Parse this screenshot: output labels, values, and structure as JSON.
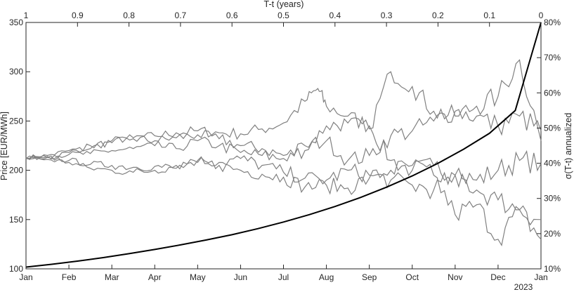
{
  "chart_data": {
    "type": "line",
    "xlabel_top": "T-t (years)",
    "ylabel_left": "Price [EUR/MWh]",
    "ylabel_right": "σ(T-t) annualized",
    "x_bottom": {
      "ticks": [
        "Jan",
        "Feb",
        "Mar",
        "Apr",
        "May",
        "Jun",
        "Jul",
        "Aug",
        "Sep",
        "Oct",
        "Nov",
        "Dec",
        "Jan"
      ],
      "secondary_label": "2023"
    },
    "x_top": {
      "ticks": [
        "1",
        "0.9",
        "0.8",
        "0.7",
        "0.6",
        "0.5",
        "0.4",
        "0.3",
        "0.2",
        "0.1",
        "0"
      ],
      "lim": [
        1,
        0
      ]
    },
    "y_left": {
      "lim": [
        100,
        350
      ],
      "ticks": [
        "100",
        "150",
        "200",
        "250",
        "300",
        "350"
      ]
    },
    "y_right": {
      "lim": [
        10,
        80
      ],
      "ticks": [
        "10%",
        "20%",
        "30%",
        "40%",
        "50%",
        "60%",
        "70%",
        "80%"
      ]
    },
    "volatility_curve": {
      "x_years_remaining": [
        1,
        0.95,
        0.9,
        0.85,
        0.8,
        0.75,
        0.7,
        0.65,
        0.6,
        0.55,
        0.5,
        0.45,
        0.4,
        0.35,
        0.3,
        0.25,
        0.2,
        0.15,
        0.1,
        0.05,
        0
      ],
      "sigma_percent": [
        10.5,
        11.3,
        12.2,
        13.2,
        14.3,
        15.5,
        16.8,
        18.2,
        19.7,
        21.4,
        23.3,
        25.4,
        27.7,
        30.3,
        33.2,
        36.4,
        40.0,
        44.0,
        48.5,
        55.0,
        80.0
      ]
    },
    "price_paths": [
      {
        "x_month": [
          0,
          0.5,
          1,
          1.5,
          2,
          2.5,
          3,
          3.5,
          4,
          4.5,
          5,
          5.5,
          6,
          6.5,
          6.8,
          7,
          7.5,
          8,
          8.5,
          9,
          9.5,
          10,
          10.5,
          11,
          11.5,
          12
        ],
        "price": [
          213,
          215,
          220,
          222,
          230,
          233,
          235,
          238,
          240,
          238,
          237,
          242,
          248,
          270,
          283,
          265,
          255,
          245,
          210,
          200,
          205,
          195,
          190,
          200,
          210,
          207
        ]
      },
      {
        "x_month": [
          0,
          0.5,
          1,
          1.5,
          2,
          2.5,
          3,
          3.5,
          4,
          4.5,
          5,
          5.5,
          6,
          6.5,
          7,
          7.5,
          8,
          8.5,
          9,
          9.5,
          10,
          10.5,
          11,
          11.5,
          12
        ],
        "price": [
          212,
          213,
          218,
          225,
          228,
          232,
          230,
          233,
          236,
          232,
          225,
          222,
          215,
          220,
          245,
          248,
          242,
          300,
          285,
          260,
          255,
          265,
          275,
          312,
          230
        ]
      },
      {
        "x_month": [
          0,
          0.5,
          1,
          1.5,
          2,
          2.5,
          3,
          3.5,
          4,
          4.5,
          5,
          5.5,
          6,
          6.5,
          7,
          7.5,
          8,
          8.5,
          9,
          9.5,
          10,
          10.5,
          11,
          11.5,
          12
        ],
        "price": [
          212,
          214,
          216,
          217,
          220,
          222,
          225,
          222,
          230,
          225,
          218,
          215,
          212,
          225,
          230,
          210,
          215,
          235,
          240,
          250,
          260,
          255,
          245,
          255,
          240
        ]
      },
      {
        "x_month": [
          0,
          0.5,
          1,
          1.5,
          2,
          2.5,
          3,
          3.5,
          4,
          4.5,
          5,
          5.5,
          6,
          6.5,
          7,
          7.5,
          8,
          8.5,
          9,
          9.5,
          10,
          10.5,
          11,
          11.5,
          12
        ],
        "price": [
          212,
          213,
          210,
          206,
          205,
          203,
          204,
          202,
          208,
          205,
          200,
          196,
          193,
          183,
          185,
          182,
          192,
          200,
          205,
          195,
          155,
          165,
          130,
          160,
          130
        ]
      },
      {
        "x_month": [
          0,
          0.5,
          1,
          1.5,
          2,
          2.5,
          3,
          3.5,
          4,
          4.5,
          5,
          5.5,
          6,
          6.5,
          7,
          7.5,
          8,
          8.5,
          9,
          9.5,
          10,
          10.5,
          11,
          11.5,
          12
        ],
        "price": [
          212,
          211,
          208,
          202,
          200,
          198,
          200,
          205,
          210,
          208,
          212,
          205,
          198,
          192,
          190,
          200,
          195,
          190,
          185,
          180,
          195,
          180,
          170,
          160,
          150
        ]
      }
    ]
  }
}
